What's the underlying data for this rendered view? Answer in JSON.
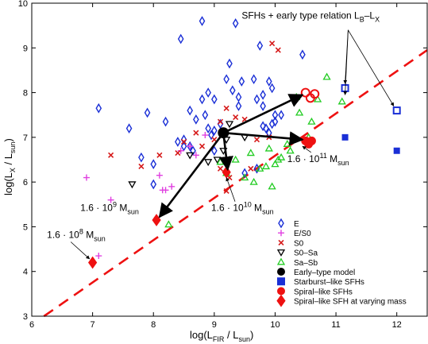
{
  "chart_data": {
    "type": "scatter",
    "xlim": [
      6,
      12.5
    ],
    "ylim": [
      3,
      10
    ],
    "xticks": [
      6,
      7,
      8,
      9,
      10,
      11,
      12
    ],
    "yticks": [
      3,
      4,
      5,
      6,
      7,
      8,
      9,
      10
    ],
    "xlabel": {
      "main": "log(L",
      "sub1": "FIR",
      "mid": " / L",
      "sub2": "sun",
      "end": ")"
    },
    "ylabel": {
      "main": "log(L",
      "sub1": "X",
      "mid": " / L",
      "sub2": "sun",
      "end": ")"
    },
    "grid": false,
    "legend_position": "bottom-right",
    "legend": [
      {
        "marker": "diamond-open",
        "color": "#1a2fd6",
        "label": "E"
      },
      {
        "marker": "plus",
        "color": "#e040e0",
        "label": "E/S0"
      },
      {
        "marker": "cross",
        "color": "#d61a1a",
        "label": "S0"
      },
      {
        "marker": "triangle-down-open",
        "color": "#000000",
        "label": "S0–Sa"
      },
      {
        "marker": "triangle-up-open",
        "color": "#22cc22",
        "label": "Sa–Sb"
      },
      {
        "marker": "circle-filled",
        "color": "#000000",
        "label": "Early–type model"
      },
      {
        "marker": "square-filled",
        "color": "#1a2fd6",
        "label": "Starburst–like SFHs"
      },
      {
        "marker": "circle-filled",
        "color": "#ee1111",
        "label": "Spiral–like SFHs"
      },
      {
        "marker": "diamond-filled",
        "color": "#ee1111",
        "label": "Spiral–like SFH at varying mass"
      }
    ],
    "relation_line": {
      "label": "SFHs + early type relation LB–LX",
      "label_main": "SFHs + early type relation L",
      "label_sub1": "B",
      "label_dash": "–L",
      "label_sub2": "X",
      "x": [
        6.2,
        12.5
      ],
      "y": [
        3.0,
        8.95
      ],
      "color": "#ee1111"
    },
    "series": [
      {
        "name": "E",
        "marker": "diamond-open",
        "color": "#1a2fd6",
        "points": [
          [
            7.1,
            7.65
          ],
          [
            7.6,
            7.2
          ],
          [
            7.9,
            7.55
          ],
          [
            8.5,
            6.95
          ],
          [
            8.6,
            7.6
          ],
          [
            8.7,
            7.4
          ],
          [
            8.8,
            7.85
          ],
          [
            8.85,
            7.5
          ],
          [
            8.9,
            8.0
          ],
          [
            9.0,
            7.85
          ],
          [
            9.0,
            7.15
          ],
          [
            8.9,
            7.2
          ],
          [
            8.95,
            7.05
          ],
          [
            8.65,
            6.7
          ],
          [
            8.6,
            6.8
          ],
          [
            8.5,
            6.8
          ],
          [
            8.4,
            6.9
          ],
          [
            8.45,
            9.2
          ],
          [
            8.8,
            9.6
          ],
          [
            9.2,
            8.3
          ],
          [
            9.3,
            8.05
          ],
          [
            9.25,
            8.65
          ],
          [
            9.4,
            7.9
          ],
          [
            9.4,
            7.7
          ],
          [
            9.45,
            8.25
          ],
          [
            9.5,
            6.2
          ],
          [
            9.65,
            8.3
          ],
          [
            9.8,
            7.95
          ],
          [
            9.8,
            7.25
          ],
          [
            9.9,
            7.1
          ],
          [
            9.95,
            7.3
          ],
          [
            9.7,
            7.85
          ],
          [
            9.7,
            6.3
          ],
          [
            9.35,
            9.55
          ],
          [
            9.95,
            8.1
          ],
          [
            10.0,
            7.5
          ],
          [
            10.0,
            7.35
          ],
          [
            10.1,
            7.5
          ],
          [
            9.75,
            9.05
          ],
          [
            9.9,
            8.25
          ],
          [
            9.8,
            7.7
          ],
          [
            9.85,
            7.2
          ],
          [
            10.45,
            8.85
          ],
          [
            8.0,
            5.95
          ],
          [
            8.0,
            6.4
          ],
          [
            8.2,
            7.35
          ],
          [
            7.8,
            6.55
          ],
          [
            9.0,
            6.7
          ],
          [
            9.1,
            7.3
          ]
        ]
      },
      {
        "name": "E/S0",
        "marker": "plus",
        "color": "#e040e0",
        "points": [
          [
            6.9,
            6.1
          ],
          [
            7.3,
            5.6
          ],
          [
            8.2,
            5.82
          ],
          [
            8.15,
            5.82
          ],
          [
            8.1,
            6.15
          ],
          [
            8.3,
            5.9
          ],
          [
            7.1,
            4.35
          ],
          [
            7.0,
            4.2
          ],
          [
            8.45,
            6.7
          ],
          [
            8.6,
            6.8
          ],
          [
            8.85,
            7.05
          ],
          [
            8.7,
            6.6
          ]
        ]
      },
      {
        "name": "S0",
        "marker": "cross",
        "color": "#d61a1a",
        "points": [
          [
            7.3,
            6.6
          ],
          [
            7.8,
            6.35
          ],
          [
            8.1,
            6.6
          ],
          [
            8.4,
            6.65
          ],
          [
            8.5,
            6.9
          ],
          [
            8.7,
            7.1
          ],
          [
            8.8,
            6.8
          ],
          [
            9.1,
            7.35
          ],
          [
            9.2,
            7.65
          ],
          [
            9.35,
            7.45
          ],
          [
            9.5,
            7.4
          ],
          [
            9.7,
            6.95
          ],
          [
            9.0,
            6.95
          ],
          [
            9.2,
            5.8
          ],
          [
            9.1,
            6.3
          ],
          [
            9.25,
            6.1
          ],
          [
            9.6,
            6.3
          ],
          [
            9.95,
            9.1
          ],
          [
            10.05,
            8.95
          ],
          [
            9.9,
            7.0
          ]
        ]
      },
      {
        "name": "S0–Sa",
        "marker": "triangle-down-open",
        "color": "#000000",
        "points": [
          [
            7.65,
            5.95
          ],
          [
            8.6,
            6.6
          ],
          [
            8.9,
            6.45
          ],
          [
            9.05,
            6.5
          ],
          [
            9.15,
            6.7
          ],
          [
            9.25,
            7.3
          ],
          [
            9.5,
            7.0
          ],
          [
            9.2,
            6.95
          ]
        ]
      },
      {
        "name": "Sa–Sb",
        "marker": "triangle-up-open",
        "color": "#22cc22",
        "points": [
          [
            8.25,
            5.05
          ],
          [
            9.1,
            6.45
          ],
          [
            9.2,
            6.2
          ],
          [
            9.35,
            6.5
          ],
          [
            9.5,
            6.1
          ],
          [
            9.65,
            6.0
          ],
          [
            9.75,
            6.3
          ],
          [
            9.85,
            6.35
          ],
          [
            9.95,
            5.9
          ],
          [
            10.0,
            6.4
          ],
          [
            10.05,
            6.5
          ],
          [
            10.1,
            6.55
          ],
          [
            10.2,
            6.85
          ],
          [
            10.25,
            6.7
          ],
          [
            10.3,
            7.0
          ],
          [
            10.4,
            7.55
          ],
          [
            10.55,
            7.0
          ],
          [
            10.6,
            7.35
          ],
          [
            10.7,
            7.85
          ],
          [
            11.1,
            7.8
          ],
          [
            10.85,
            8.35
          ],
          [
            9.6,
            6.65
          ],
          [
            9.9,
            6.75
          ],
          [
            10.35,
            7.9
          ]
        ]
      }
    ],
    "models": {
      "early_type": {
        "x": 9.15,
        "y": 7.1,
        "color": "#000000"
      },
      "starburst_open": [
        [
          11.15,
          8.1
        ],
        [
          12.0,
          7.6
        ]
      ],
      "starburst_filled": [
        [
          11.15,
          7.0
        ],
        [
          12.0,
          6.7
        ]
      ],
      "spiral_open": [
        [
          10.5,
          8.0
        ],
        [
          10.58,
          7.88
        ],
        [
          10.65,
          7.97
        ]
      ],
      "spiral_filled": [
        [
          10.5,
          6.92
        ],
        [
          10.6,
          6.92
        ],
        [
          10.55,
          6.85
        ]
      ],
      "spiral_mass_diamonds": [
        [
          7.0,
          4.2
        ],
        [
          8.05,
          5.15
        ],
        [
          9.2,
          6.22
        ]
      ]
    },
    "arrows": [
      {
        "from": [
          9.15,
          7.1
        ],
        "to": [
          10.45,
          7.95
        ]
      },
      {
        "from": [
          9.15,
          7.1
        ],
        "to": [
          10.45,
          6.95
        ]
      },
      {
        "from": [
          9.15,
          7.1
        ],
        "to": [
          9.22,
          6.28
        ]
      },
      {
        "from": [
          9.15,
          7.1
        ],
        "to": [
          8.1,
          5.22
        ]
      }
    ],
    "annotations": [
      {
        "main": "1.6 · 10",
        "sup": "11",
        "tail": " M",
        "sub": "sun",
        "x": 10.2,
        "y": 6.45,
        "pointer": [
          10.45,
          6.8
        ]
      },
      {
        "main": "1.6 · 10",
        "sup": "10",
        "tail": " M",
        "sub": "sun",
        "x": 8.95,
        "y": 5.35,
        "pointer": [
          9.2,
          6.1
        ]
      },
      {
        "main": "1.6 · 10",
        "sup": "9",
        "tail": " M",
        "sub": "sun",
        "x": 6.8,
        "y": 5.35,
        "pointer": null
      },
      {
        "main": "1.6 · 10",
        "sup": "8",
        "tail": " M",
        "sub": "sun",
        "x": 6.25,
        "y": 4.75,
        "pointer": [
          6.95,
          4.28
        ]
      }
    ],
    "relation_label_anchor": [
      9.45,
      9.65
    ],
    "relation_pointers": [
      [
        11.15,
        8.2
      ],
      [
        11.15,
        7.95
      ],
      [
        11.95,
        7.7
      ]
    ]
  }
}
